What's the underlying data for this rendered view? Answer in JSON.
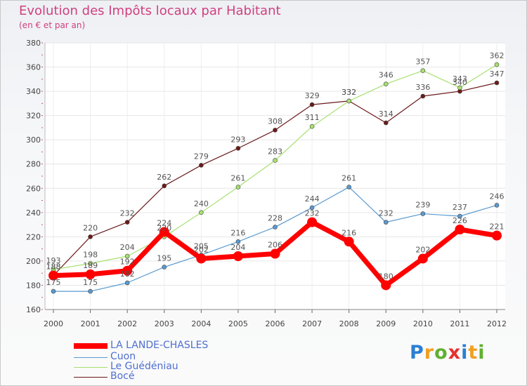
{
  "chart_data": {
    "type": "line",
    "title": "Evolution des Impôts locaux par Habitant",
    "subtitle": "(en € et par an)",
    "xlabel": "",
    "ylabel": "",
    "ylim": [
      160,
      380
    ],
    "yticks": [
      160,
      180,
      200,
      220,
      240,
      260,
      280,
      300,
      320,
      340,
      360,
      380
    ],
    "grid": true,
    "categories": [
      "2000",
      "2001",
      "2002",
      "2003",
      "2004",
      "2005",
      "2006",
      "2007",
      "2008",
      "2009",
      "2010",
      "2011",
      "2012"
    ],
    "series": [
      {
        "name": "LA LANDE-CHASLES",
        "color": "#ff0000",
        "values": [
          188,
          189,
          192,
          224,
          202,
          204,
          206,
          232,
          216,
          180,
          202,
          226,
          221
        ]
      },
      {
        "name": "Cuon",
        "color": "#5a9ad0",
        "values": [
          175,
          175,
          182,
          195,
          205,
          216,
          228,
          244,
          261,
          232,
          239,
          237,
          246
        ]
      },
      {
        "name": "Le Guédéniau",
        "color": "#a8e070",
        "values": [
          193,
          198,
          204,
          220,
          240,
          261,
          283,
          311,
          332,
          346,
          357,
          343,
          362
        ]
      },
      {
        "name": "Bocé",
        "color": "#6b1a1a",
        "values": [
          188,
          220,
          232,
          262,
          279,
          293,
          308,
          329,
          332,
          314,
          336,
          340,
          347
        ]
      }
    ]
  },
  "branding": {
    "logo_parts": [
      "P",
      "r",
      "o",
      "x",
      "i",
      "t",
      "i"
    ]
  }
}
